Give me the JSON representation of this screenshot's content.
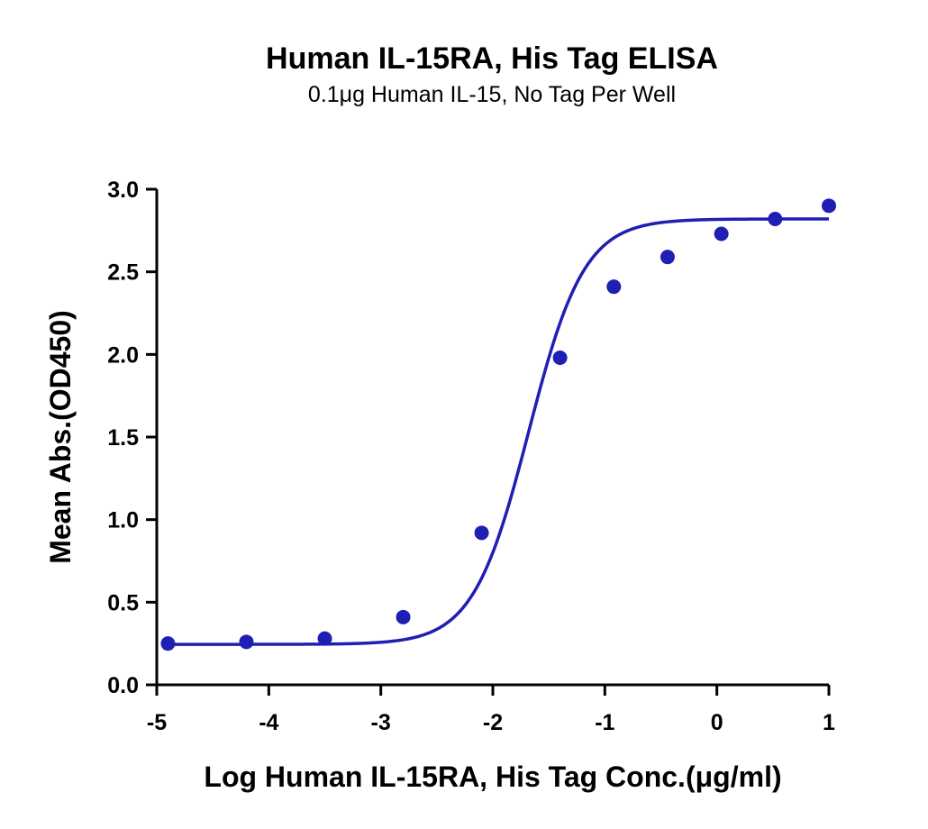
{
  "chart_data": {
    "type": "scatter",
    "title": "Human IL-15RA, His Tag ELISA",
    "subtitle": "0.1μg Human IL-15, No Tag Per Well",
    "xlabel": "Log Human IL-15RA, His Tag Conc.(μg/ml)",
    "ylabel": "Mean Abs.(OD450)",
    "xlim": [
      -5,
      1
    ],
    "ylim": [
      0,
      3
    ],
    "x_ticks": [
      -5,
      -4,
      -3,
      -2,
      -1,
      0,
      1
    ],
    "y_ticks": [
      0.0,
      0.5,
      1.0,
      1.5,
      2.0,
      2.5,
      3.0
    ],
    "grid": false,
    "colors": {
      "series": "#1f1fb4"
    },
    "series": [
      {
        "x": [
          -4.9,
          -4.2,
          -3.5,
          -2.8,
          -2.1,
          -1.4,
          -0.92,
          -0.44,
          0.04,
          0.52,
          1.0
        ],
        "y": [
          0.25,
          0.26,
          0.28,
          0.41,
          0.92,
          1.98,
          2.41,
          2.59,
          2.73,
          2.82,
          2.9
        ],
        "fit": {
          "model": "4PL",
          "bottom": 0.245,
          "top": 2.82,
          "logEC50": -1.68,
          "hill": 1.75
        }
      }
    ]
  }
}
